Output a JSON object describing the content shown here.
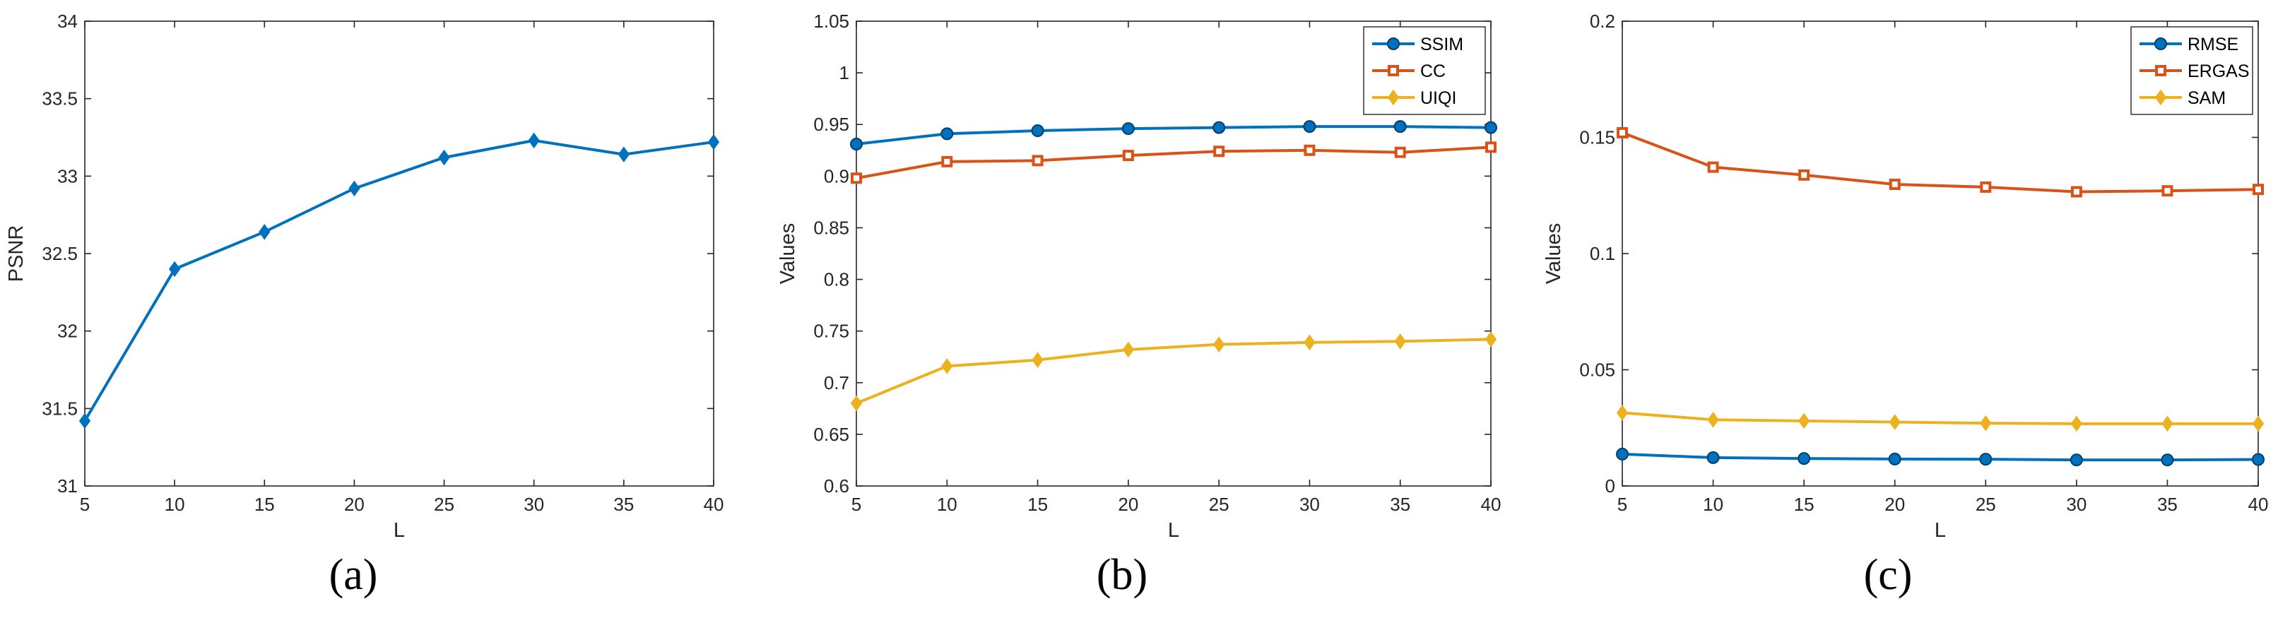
{
  "chart_data": [
    {
      "type": "line",
      "caption": "(a)",
      "xlabel": "L",
      "ylabel": "PSNR",
      "x": [
        5,
        10,
        15,
        20,
        25,
        30,
        35,
        40
      ],
      "xlim": [
        5,
        40
      ],
      "ylim": [
        31,
        34
      ],
      "xticks": [
        5,
        10,
        15,
        20,
        25,
        30,
        35,
        40
      ],
      "yticks": [
        31,
        31.5,
        32,
        32.5,
        33,
        33.5,
        34
      ],
      "legend": false,
      "series": [
        {
          "name": "PSNR",
          "color": "#0072BD",
          "marker": "diamond",
          "values": [
            31.42,
            32.4,
            32.64,
            32.92,
            33.12,
            33.23,
            33.14,
            33.22
          ]
        }
      ]
    },
    {
      "type": "line",
      "caption": "(b)",
      "xlabel": "L",
      "ylabel": "Values",
      "x": [
        5,
        10,
        15,
        20,
        25,
        30,
        35,
        40
      ],
      "xlim": [
        5,
        40
      ],
      "ylim": [
        0.6,
        1.05
      ],
      "xticks": [
        5,
        10,
        15,
        20,
        25,
        30,
        35,
        40
      ],
      "yticks": [
        0.6,
        0.65,
        0.7,
        0.75,
        0.8,
        0.85,
        0.9,
        0.95,
        1,
        1.05
      ],
      "legend": true,
      "legend_position": "top-right",
      "series": [
        {
          "name": "SSIM",
          "color": "#0072BD",
          "marker": "circle",
          "values": [
            0.931,
            0.941,
            0.944,
            0.946,
            0.947,
            0.948,
            0.948,
            0.947
          ]
        },
        {
          "name": "CC",
          "color": "#D95319",
          "marker": "square",
          "values": [
            0.898,
            0.914,
            0.915,
            0.92,
            0.924,
            0.925,
            0.923,
            0.928
          ]
        },
        {
          "name": "UIQI",
          "color": "#EDB120",
          "marker": "diamond",
          "values": [
            0.68,
            0.716,
            0.722,
            0.732,
            0.737,
            0.739,
            0.74,
            0.742
          ]
        }
      ]
    },
    {
      "type": "line",
      "caption": "(c)",
      "xlabel": "L",
      "ylabel": "Values",
      "x": [
        5,
        10,
        15,
        20,
        25,
        30,
        35,
        40
      ],
      "xlim": [
        5,
        40
      ],
      "ylim": [
        0,
        0.2
      ],
      "xticks": [
        5,
        10,
        15,
        20,
        25,
        30,
        35,
        40
      ],
      "yticks": [
        0,
        0.05,
        0.1,
        0.15,
        0.2
      ],
      "legend": true,
      "legend_position": "top-right",
      "series": [
        {
          "name": "RMSE",
          "color": "#0072BD",
          "marker": "circle",
          "values": [
            0.0137,
            0.0122,
            0.0118,
            0.0116,
            0.0115,
            0.0112,
            0.0112,
            0.0114
          ]
        },
        {
          "name": "ERGAS",
          "color": "#D95319",
          "marker": "square",
          "values": [
            0.152,
            0.1372,
            0.1338,
            0.1298,
            0.1286,
            0.1266,
            0.127,
            0.1276
          ]
        },
        {
          "name": "SAM",
          "color": "#EDB120",
          "marker": "diamond",
          "values": [
            0.0315,
            0.0285,
            0.028,
            0.0275,
            0.027,
            0.0268,
            0.0268,
            0.0268
          ]
        }
      ]
    }
  ]
}
